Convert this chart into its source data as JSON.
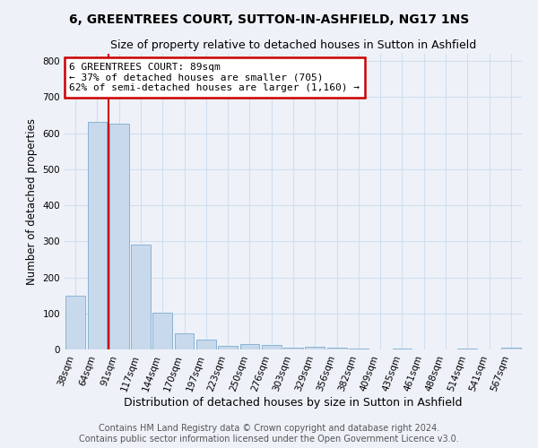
{
  "title": "6, GREENTREES COURT, SUTTON-IN-ASHFIELD, NG17 1NS",
  "subtitle": "Size of property relative to detached houses in Sutton in Ashfield",
  "xlabel": "Distribution of detached houses by size in Sutton in Ashfield",
  "ylabel": "Number of detached properties",
  "bar_color": "#c8d9ec",
  "bar_edge_color": "#89b4d6",
  "grid_color": "#d0dff0",
  "background_color": "#eef2f8",
  "plot_bg_color": "#eef2f8",
  "categories": [
    "38sqm",
    "64sqm",
    "91sqm",
    "117sqm",
    "144sqm",
    "170sqm",
    "197sqm",
    "223sqm",
    "250sqm",
    "276sqm",
    "303sqm",
    "329sqm",
    "356sqm",
    "382sqm",
    "409sqm",
    "435sqm",
    "461sqm",
    "488sqm",
    "514sqm",
    "541sqm",
    "567sqm"
  ],
  "values": [
    150,
    632,
    627,
    290,
    103,
    45,
    28,
    10,
    15,
    12,
    5,
    8,
    5,
    3,
    0,
    3,
    0,
    0,
    3,
    0,
    5
  ],
  "ylim": [
    0,
    820
  ],
  "yticks": [
    0,
    100,
    200,
    300,
    400,
    500,
    600,
    700,
    800
  ],
  "vline_x": 1.5,
  "annotation_text": "6 GREENTREES COURT: 89sqm\n← 37% of detached houses are smaller (705)\n62% of semi-detached houses are larger (1,160) →",
  "annotation_box_color": "#ffffff",
  "annotation_box_edge_color": "#cc0000",
  "vline_color": "#cc0000",
  "footer_line1": "Contains HM Land Registry data © Crown copyright and database right 2024.",
  "footer_line2": "Contains public sector information licensed under the Open Government Licence v3.0.",
  "title_fontsize": 10,
  "subtitle_fontsize": 9,
  "xlabel_fontsize": 9,
  "ylabel_fontsize": 8.5,
  "tick_fontsize": 7.5,
  "annotation_fontsize": 8,
  "footer_fontsize": 7
}
